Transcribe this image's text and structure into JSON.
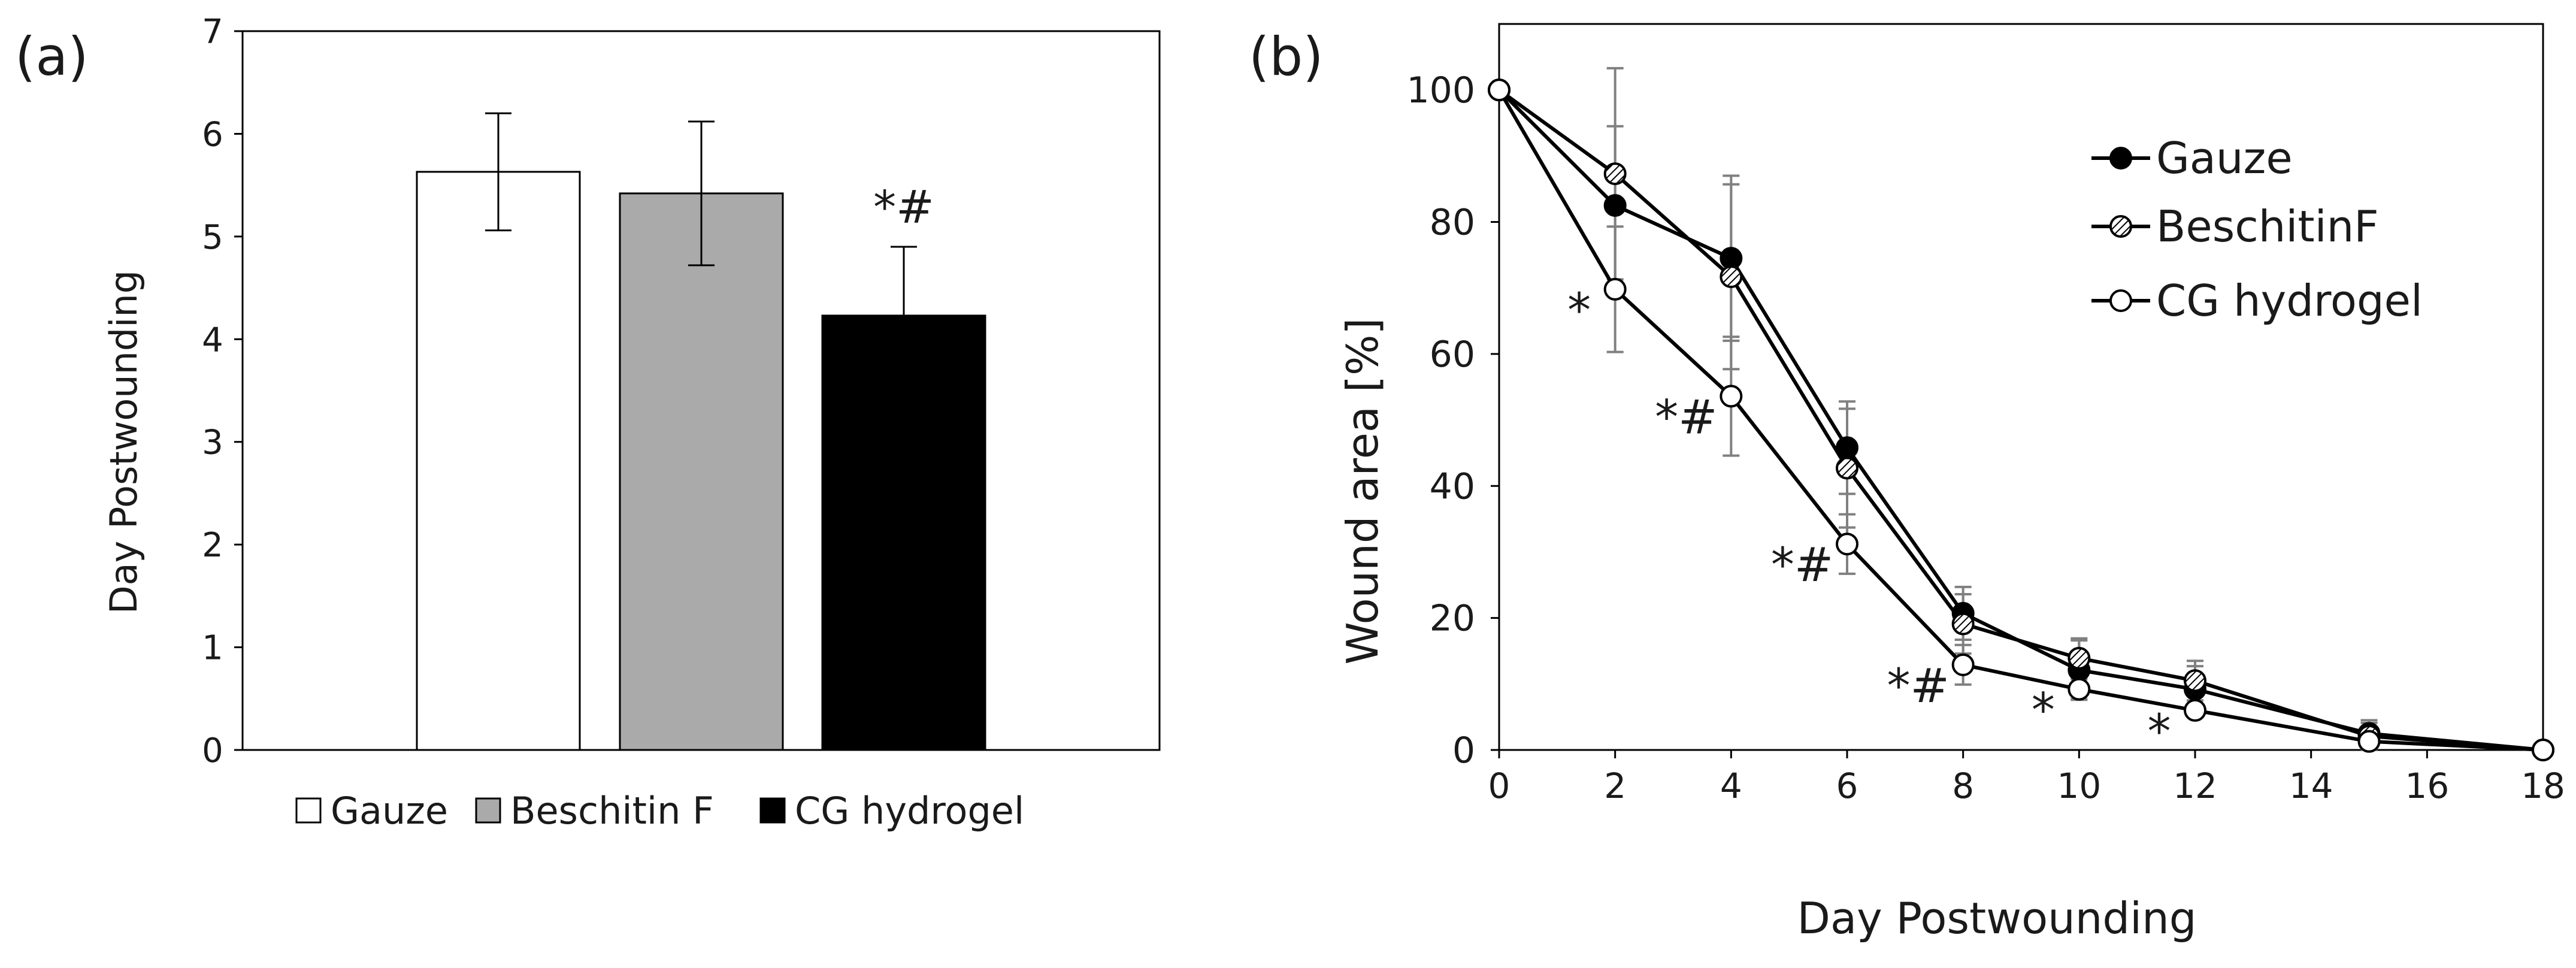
{
  "chart_data": [
    {
      "panel_label": "(a)",
      "type": "bar",
      "title": "",
      "xlabel": "",
      "ylabel": "Day Postwounding",
      "ylim": [
        0,
        7
      ],
      "yticks": [
        "0",
        "1",
        "2",
        "3",
        "4",
        "5",
        "6",
        "7"
      ],
      "categories": [
        "Gauze",
        "Beschitin F",
        "CG hydrogel"
      ],
      "values": [
        5.63,
        5.42,
        4.23
      ],
      "errors": [
        0.57,
        0.7,
        0.67
      ],
      "colors": [
        "#ffffff",
        "#aaaaaa",
        "#000000"
      ],
      "annotations": [
        {
          "category": "CG hydrogel",
          "text": "*#"
        }
      ],
      "legend": [
        "Gauze",
        "Beschitin F",
        "CG hydrogel"
      ],
      "legend_position": "bottom"
    },
    {
      "panel_label": "(b)",
      "type": "line",
      "title": "",
      "xlabel": "Day Postwounding",
      "ylabel": "Wound area [%]",
      "xlim": [
        0,
        18
      ],
      "ylim": [
        0,
        110
      ],
      "xticks": [
        "0",
        "2",
        "4",
        "6",
        "8",
        "10",
        "12",
        "14",
        "16",
        "18"
      ],
      "yticks": [
        "0",
        "20",
        "40",
        "60",
        "80",
        "100"
      ],
      "x": [
        0,
        2,
        4,
        6,
        8,
        10,
        12,
        15,
        18
      ],
      "series": [
        {
          "name": "Gauze",
          "marker": "filled",
          "values": [
            100,
            82.5,
            74.5,
            45.8,
            20.7,
            12.1,
            9.2,
            2.5,
            0
          ],
          "errors": [
            0,
            12,
            12.5,
            7,
            4,
            4.5,
            3.5,
            2,
            0
          ]
        },
        {
          "name": "BeschitinF",
          "marker": "hatched",
          "values": [
            100,
            87.3,
            71.7,
            42.7,
            19.1,
            13.9,
            10.5,
            2.1,
            0
          ],
          "errors": [
            0,
            16,
            14,
            9,
            4.5,
            3,
            3,
            2,
            0
          ]
        },
        {
          "name": "CG hydrogel",
          "marker": "open",
          "values": [
            100,
            69.8,
            53.6,
            31.2,
            12.9,
            9.2,
            6.0,
            1.3,
            0
          ],
          "errors": [
            0,
            9.5,
            9,
            4.5,
            3,
            1.5,
            1,
            0.5,
            0
          ]
        }
      ],
      "annotations": [
        {
          "x": 2,
          "text": "*"
        },
        {
          "x": 4,
          "text": "*#"
        },
        {
          "x": 6,
          "text": "*#"
        },
        {
          "x": 8,
          "text": "*#"
        },
        {
          "x": 10,
          "text": "*"
        },
        {
          "x": 12,
          "text": "*"
        }
      ],
      "legend_position": "top-right"
    }
  ]
}
